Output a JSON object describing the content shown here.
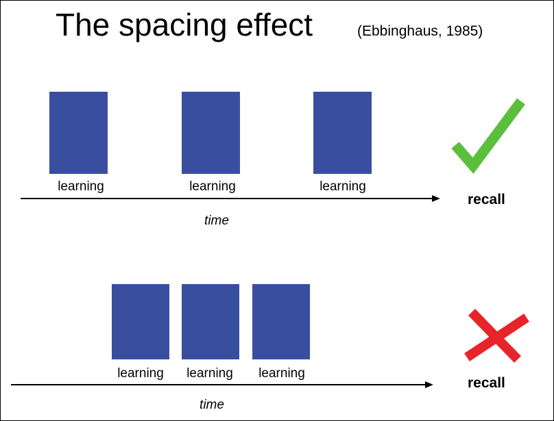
{
  "title": "The spacing effect",
  "citation": "(Ebbinghaus, 1985)",
  "spaced": {
    "labels": [
      "learning",
      "learning",
      "learning"
    ],
    "axis_label": "time",
    "outcome": "recall",
    "outcome_icon": "checkmark-icon",
    "outcome_color": "#5cbf3c"
  },
  "massed": {
    "labels": [
      "learning",
      "learning",
      "learning"
    ],
    "axis_label": "time",
    "outcome": "recall",
    "outcome_icon": "cross-icon",
    "outcome_color": "#e8242b"
  },
  "block_color": "#3a4ea0"
}
